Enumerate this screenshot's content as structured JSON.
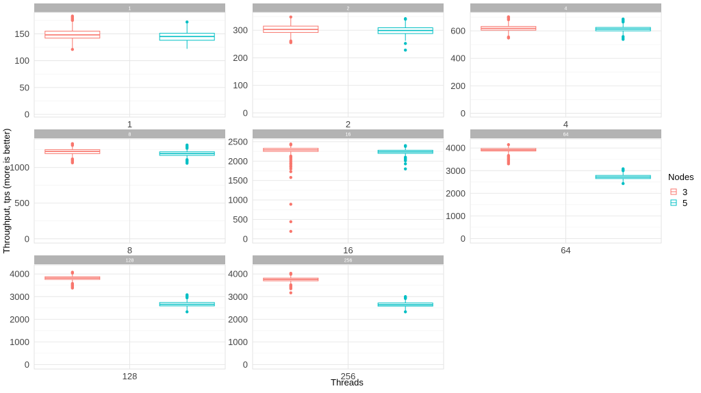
{
  "chart_data": {
    "type": "box",
    "facet_by": "Threads",
    "xlabel": "Threads",
    "ylabel": "Throughput, tps (more is better)",
    "legend": {
      "title": "Nodes",
      "position": "right",
      "entries": [
        {
          "label": "3",
          "color": "#F8766D"
        },
        {
          "label": "5",
          "color": "#00BFC4"
        }
      ]
    },
    "grid": true,
    "panels": [
      {
        "strip": "1",
        "category": "1",
        "ylim": [
          -5,
          190
        ],
        "yticks": [
          0,
          50,
          100,
          150
        ],
        "boxes": [
          {
            "nodes": "3",
            "q1": 142,
            "median": 148,
            "q3": 155,
            "whisker_low": 123,
            "whisker_high": 172,
            "outliers": [
              121,
              175,
              177,
              179,
              181,
              183
            ]
          },
          {
            "nodes": "5",
            "q1": 138,
            "median": 145,
            "q3": 151,
            "whisker_low": 122,
            "whisker_high": 172,
            "outliers": [
              172
            ]
          }
        ]
      },
      {
        "strip": "2",
        "category": "2",
        "ylim": [
          -15,
          365
        ],
        "yticks": [
          0,
          100,
          200,
          300
        ],
        "boxes": [
          {
            "nodes": "3",
            "q1": 292,
            "median": 303,
            "q3": 315,
            "whisker_low": 264,
            "whisker_high": 348,
            "outliers": [
              255,
              258,
              261,
              348
            ]
          },
          {
            "nodes": "5",
            "q1": 288,
            "median": 299,
            "q3": 309,
            "whisker_low": 262,
            "whisker_high": 338,
            "outliers": [
              228,
              252,
              340,
              342
            ]
          }
        ]
      },
      {
        "strip": "4",
        "category": "4",
        "ylim": [
          -28,
          735
        ],
        "yticks": [
          0,
          200,
          400,
          600
        ],
        "boxes": [
          {
            "nodes": "3",
            "q1": 605,
            "median": 618,
            "q3": 632,
            "whisker_low": 563,
            "whisker_high": 670,
            "outliers": [
              548,
              555,
              681,
              690,
              698,
              702
            ]
          },
          {
            "nodes": "5",
            "q1": 600,
            "median": 613,
            "q3": 625,
            "whisker_low": 562,
            "whisker_high": 658,
            "outliers": [
              538,
              548,
              558,
              665,
              672,
              680,
              686
            ]
          }
        ]
      },
      {
        "strip": "8",
        "category": "8",
        "ylim": [
          -60,
          1400
        ],
        "yticks": [
          0,
          500,
          1000
        ],
        "boxes": [
          {
            "nodes": "3",
            "q1": 1195,
            "median": 1225,
            "q3": 1250,
            "whisker_low": 1130,
            "whisker_high": 1300,
            "outliers": [
              1065,
              1080,
              1095,
              1110,
              1120,
              1310,
              1325,
              1335
            ]
          },
          {
            "nodes": "5",
            "q1": 1170,
            "median": 1195,
            "q3": 1220,
            "whisker_low": 1120,
            "whisker_high": 1260,
            "outliers": [
              1060,
              1075,
              1090,
              1100,
              1110,
              1270,
              1285,
              1300,
              1315
            ]
          }
        ]
      },
      {
        "strip": "16",
        "category": "16",
        "ylim": [
          -110,
          2570
        ],
        "yticks": [
          0,
          500,
          1000,
          1500,
          2000,
          2500
        ],
        "boxes": [
          {
            "nodes": "3",
            "q1": 2250,
            "median": 2290,
            "q3": 2330,
            "whisker_low": 2150,
            "whisker_high": 2400,
            "outliers": [
              190,
              440,
              890,
              1580,
              1730,
              1800,
              1850,
              1880,
              1920,
              1950,
              1990,
              2030,
              2060,
              2090,
              2110,
              2130,
              2420,
              2440
            ]
          },
          {
            "nodes": "5",
            "q1": 2200,
            "median": 2240,
            "q3": 2280,
            "whisker_low": 2120,
            "whisker_high": 2360,
            "outliers": [
              1800,
              1930,
              2010,
              2040,
              2070,
              2100,
              2380,
              2400
            ]
          }
        ]
      },
      {
        "strip": "64",
        "category": "64",
        "ylim": [
          -200,
          4400
        ],
        "yticks": [
          0,
          1000,
          2000,
          3000,
          4000
        ],
        "boxes": [
          {
            "nodes": "3",
            "q1": 3870,
            "median": 3920,
            "q3": 3980,
            "whisker_low": 3720,
            "whisker_high": 4100,
            "outliers": [
              3300,
              3360,
              3420,
              3470,
              3520,
              3570,
              3620,
              3670,
              4150
            ]
          },
          {
            "nodes": "5",
            "q1": 2650,
            "median": 2720,
            "q3": 2790,
            "whisker_low": 2420,
            "whisker_high": 2950,
            "outliers": [
              2430,
              3000,
              3040,
              3080
            ]
          }
        ]
      },
      {
        "strip": "128",
        "category": "128",
        "ylim": [
          -200,
          4400
        ],
        "yticks": [
          0,
          1000,
          2000,
          3000,
          4000
        ],
        "boxes": [
          {
            "nodes": "3",
            "q1": 3760,
            "median": 3820,
            "q3": 3880,
            "whisker_low": 3620,
            "whisker_high": 4000,
            "outliers": [
              3380,
              3420,
              3460,
              3500,
              3540,
              3580,
              4040,
              4080
            ]
          },
          {
            "nodes": "5",
            "q1": 2590,
            "median": 2660,
            "q3": 2740,
            "whisker_low": 2340,
            "whisker_high": 2900,
            "outliers": [
              2330,
              2950,
              3000,
              3040,
              3080
            ]
          }
        ]
      },
      {
        "strip": "256",
        "category": "256",
        "ylim": [
          -200,
          4400
        ],
        "yticks": [
          0,
          1000,
          2000,
          3000,
          4000
        ],
        "boxes": [
          {
            "nodes": "3",
            "q1": 3700,
            "median": 3760,
            "q3": 3820,
            "whisker_low": 3550,
            "whisker_high": 3950,
            "outliers": [
              3170,
              3350,
              3400,
              3440,
              3480,
              3520,
              3990,
              4030
            ]
          },
          {
            "nodes": "5",
            "q1": 2580,
            "median": 2640,
            "q3": 2720,
            "whisker_low": 2350,
            "whisker_high": 2880,
            "outliers": [
              2330,
              2920,
              2960,
              3000
            ]
          }
        ]
      }
    ]
  }
}
